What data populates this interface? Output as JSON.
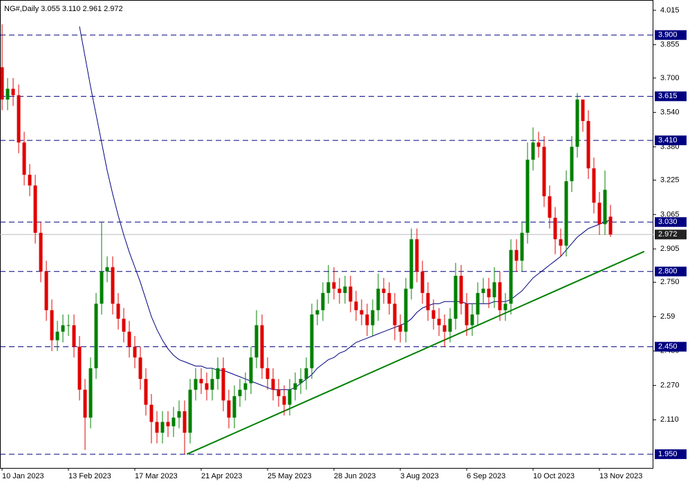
{
  "chart_data": {
    "type": "candlestick",
    "title": "NG#,Daily  3.055 3.110 2.961 2.972",
    "categories": [
      "10 Jan 2023",
      null,
      null,
      null,
      null,
      null,
      null,
      null,
      null,
      null,
      null,
      null,
      "13 Feb 2023",
      null,
      null,
      null,
      null,
      null,
      null,
      null,
      null,
      null,
      null,
      null,
      "17 Mar 2023",
      null,
      null,
      null,
      null,
      null,
      null,
      null,
      null,
      null,
      null,
      null,
      "21 Apr 2023",
      null,
      null,
      null,
      null,
      null,
      null,
      null,
      null,
      null,
      null,
      null,
      "25 May 2023",
      null,
      null,
      null,
      null,
      null,
      null,
      null,
      null,
      null,
      null,
      null,
      "28 Jun 2023",
      null,
      null,
      null,
      null,
      null,
      null,
      null,
      null,
      null,
      null,
      null,
      "3 Aug 2023",
      null,
      null,
      null,
      null,
      null,
      null,
      null,
      null,
      null,
      null,
      null,
      "6 Sep 2023",
      null,
      null,
      null,
      null,
      null,
      null,
      null,
      null,
      null,
      null,
      null,
      "10 Oct 2023",
      null,
      null,
      null,
      null,
      null,
      null,
      null,
      null,
      null,
      null,
      null,
      "13 Nov 2023",
      null,
      null
    ],
    "open": [
      3.75,
      3.6,
      3.65,
      3.62,
      3.4,
      3.25,
      3.2,
      2.98,
      2.8,
      2.62,
      2.48,
      2.52,
      2.55,
      2.55,
      2.45,
      2.25,
      2.12,
      2.35,
      2.65,
      2.8,
      2.82,
      2.65,
      2.58,
      2.52,
      2.45,
      2.4,
      2.3,
      2.18,
      2.1,
      2.05,
      2.1,
      2.08,
      2.12,
      2.15,
      2.05,
      2.25,
      2.3,
      2.28,
      2.25,
      2.3,
      2.35,
      2.2,
      2.12,
      2.22,
      2.25,
      2.28,
      2.4,
      2.55,
      2.35,
      2.3,
      2.25,
      2.22,
      2.18,
      2.25,
      2.28,
      2.3,
      2.35,
      2.6,
      2.62,
      2.7,
      2.75,
      2.72,
      2.7,
      2.73,
      2.66,
      2.62,
      2.6,
      2.55,
      2.62,
      2.72,
      2.7,
      2.65,
      2.55,
      2.52,
      2.72,
      2.95,
      2.8,
      2.7,
      2.62,
      2.58,
      2.55,
      2.52,
      2.58,
      2.78,
      2.65,
      2.55,
      2.6,
      2.7,
      2.72,
      2.68,
      2.75,
      2.62,
      2.65,
      2.9,
      2.85,
      2.98,
      3.32,
      3.4,
      3.38,
      3.15,
      3.05,
      2.95,
      2.92,
      3.22,
      3.38,
      3.6,
      3.5,
      3.28,
      3.12,
      3.02,
      3.055
    ],
    "high": [
      3.95,
      3.7,
      3.7,
      3.67,
      3.45,
      3.3,
      3.25,
      3.03,
      2.85,
      2.67,
      2.57,
      2.6,
      2.6,
      2.6,
      2.5,
      2.3,
      2.4,
      2.7,
      3.03,
      2.87,
      2.87,
      2.7,
      2.63,
      2.57,
      2.5,
      2.45,
      2.35,
      2.23,
      2.15,
      2.15,
      2.15,
      2.17,
      2.2,
      2.2,
      2.3,
      2.35,
      2.35,
      2.33,
      2.35,
      2.4,
      2.4,
      2.25,
      2.27,
      2.3,
      2.33,
      2.45,
      2.62,
      2.6,
      2.4,
      2.35,
      2.3,
      2.27,
      2.3,
      2.33,
      2.35,
      2.4,
      2.65,
      2.67,
      2.75,
      2.83,
      2.82,
      2.77,
      2.78,
      2.78,
      2.71,
      2.67,
      2.65,
      2.67,
      2.79,
      2.77,
      2.75,
      2.7,
      2.6,
      2.77,
      3.0,
      3.0,
      2.85,
      2.75,
      2.67,
      2.63,
      2.6,
      2.63,
      2.84,
      2.83,
      2.7,
      2.65,
      2.75,
      2.77,
      2.77,
      2.82,
      2.8,
      2.7,
      2.95,
      2.95,
      3.03,
      3.4,
      3.47,
      3.45,
      3.43,
      3.2,
      3.1,
      3.0,
      3.27,
      3.43,
      3.63,
      3.58,
      3.55,
      3.33,
      3.17,
      3.27,
      3.11
    ],
    "low": [
      3.55,
      3.55,
      3.57,
      3.35,
      3.2,
      3.15,
      2.93,
      2.75,
      2.57,
      2.43,
      2.43,
      2.47,
      2.5,
      2.4,
      2.2,
      1.97,
      2.07,
      2.3,
      2.6,
      2.75,
      2.6,
      2.53,
      2.47,
      2.4,
      2.35,
      2.25,
      2.13,
      2.0,
      2.0,
      2.0,
      2.03,
      2.03,
      2.07,
      1.95,
      2.0,
      2.2,
      2.23,
      2.2,
      2.2,
      2.25,
      2.15,
      2.07,
      2.07,
      2.17,
      2.2,
      2.23,
      2.35,
      2.3,
      2.25,
      2.2,
      2.17,
      2.13,
      2.13,
      2.2,
      2.23,
      2.25,
      2.3,
      2.55,
      2.57,
      2.65,
      2.67,
      2.65,
      2.65,
      2.61,
      2.57,
      2.55,
      2.5,
      2.5,
      2.57,
      2.65,
      2.6,
      2.48,
      2.47,
      2.47,
      2.67,
      2.75,
      2.65,
      2.57,
      2.53,
      2.5,
      2.45,
      2.47,
      2.53,
      2.6,
      2.5,
      2.5,
      2.55,
      2.65,
      2.63,
      2.63,
      2.57,
      2.57,
      2.6,
      2.8,
      2.8,
      2.93,
      3.27,
      3.33,
      3.1,
      3.0,
      2.88,
      2.87,
      2.87,
      3.17,
      3.33,
      3.45,
      3.23,
      3.07,
      2.97,
      2.97,
      2.961
    ],
    "close": [
      3.6,
      3.65,
      3.62,
      3.4,
      3.25,
      3.2,
      2.98,
      2.8,
      2.62,
      2.48,
      2.52,
      2.55,
      2.55,
      2.45,
      2.25,
      2.12,
      2.35,
      2.65,
      2.8,
      2.82,
      2.65,
      2.58,
      2.52,
      2.45,
      2.4,
      2.3,
      2.18,
      2.1,
      2.05,
      2.1,
      2.08,
      2.12,
      2.15,
      2.05,
      2.25,
      2.3,
      2.28,
      2.25,
      2.3,
      2.35,
      2.2,
      2.12,
      2.22,
      2.25,
      2.28,
      2.4,
      2.55,
      2.35,
      2.3,
      2.25,
      2.22,
      2.18,
      2.25,
      2.28,
      2.3,
      2.35,
      2.6,
      2.62,
      2.7,
      2.75,
      2.72,
      2.7,
      2.73,
      2.66,
      2.62,
      2.6,
      2.55,
      2.62,
      2.72,
      2.7,
      2.65,
      2.55,
      2.52,
      2.72,
      2.95,
      2.8,
      2.7,
      2.62,
      2.58,
      2.55,
      2.52,
      2.58,
      2.78,
      2.65,
      2.55,
      2.6,
      2.7,
      2.72,
      2.68,
      2.75,
      2.62,
      2.65,
      2.9,
      2.85,
      2.98,
      3.32,
      3.4,
      3.38,
      3.15,
      3.05,
      2.95,
      2.92,
      3.22,
      3.38,
      3.6,
      3.5,
      3.28,
      3.12,
      3.02,
      3.18,
      2.972
    ],
    "up_color": "#008000",
    "down_color": "#e00000",
    "ma": {
      "color": "#000080",
      "values": [
        null,
        null,
        null,
        null,
        null,
        null,
        null,
        null,
        null,
        null,
        null,
        null,
        null,
        null,
        3.94,
        3.8,
        3.66,
        3.53,
        3.4,
        3.27,
        3.16,
        3.06,
        2.97,
        2.89,
        2.82,
        2.75,
        2.67,
        2.59,
        2.53,
        2.48,
        2.44,
        2.41,
        2.39,
        2.38,
        2.37,
        2.36,
        2.36,
        2.35,
        2.35,
        2.34,
        2.34,
        2.33,
        2.32,
        2.31,
        2.3,
        2.29,
        2.28,
        2.27,
        2.26,
        2.25,
        2.25,
        2.25,
        2.25,
        2.26,
        2.28,
        2.3,
        2.32,
        2.35,
        2.37,
        2.39,
        2.4,
        2.42,
        2.43,
        2.45,
        2.47,
        2.48,
        2.49,
        2.5,
        2.51,
        2.52,
        2.53,
        2.54,
        2.55,
        2.56,
        2.58,
        2.61,
        2.63,
        2.64,
        2.65,
        2.65,
        2.66,
        2.66,
        2.66,
        2.66,
        2.65,
        2.65,
        2.65,
        2.65,
        2.65,
        2.66,
        2.66,
        2.66,
        2.67,
        2.69,
        2.71,
        2.74,
        2.77,
        2.79,
        2.81,
        2.83,
        2.85,
        2.87,
        2.9,
        2.93,
        2.96,
        2.98,
        3.0,
        3.01,
        3.02,
        3.03,
        3.04
      ]
    },
    "trendline": {
      "color": "#008000",
      "x": [
        33.4,
        116.1
      ],
      "values": [
        1.95,
        2.893
      ]
    },
    "levels": [
      {
        "value": 3.9,
        "label": "3.900"
      },
      3.615,
      {
        "value": 3.41,
        "label": "3.410"
      },
      {
        "value": 3.03,
        "label": "3.030"
      },
      {
        "value": 2.8,
        "label": "2.800"
      },
      {
        "value": 2.45,
        "label": "2.450"
      },
      {
        "value": 1.95,
        "label": "1.950"
      }
    ],
    "level_color": "#000080",
    "last_price": 2.972,
    "ylim": [
      1.886,
      4.063
    ],
    "yticks": [
      4.015,
      3.855,
      {
        "value": 3.7,
        "label": "3.700"
      },
      {
        "value": 3.54,
        "label": "3.540"
      },
      {
        "value": 3.38,
        "label": "3.380"
      },
      3.225,
      3.065,
      2.905,
      {
        "value": 2.75,
        "label": "2.750"
      },
      2.59,
      {
        "value": 2.43,
        "label": "2.430"
      },
      {
        "value": 2.27,
        "label": "2.270"
      },
      {
        "value": 2.11,
        "label": "2.110"
      }
    ]
  }
}
